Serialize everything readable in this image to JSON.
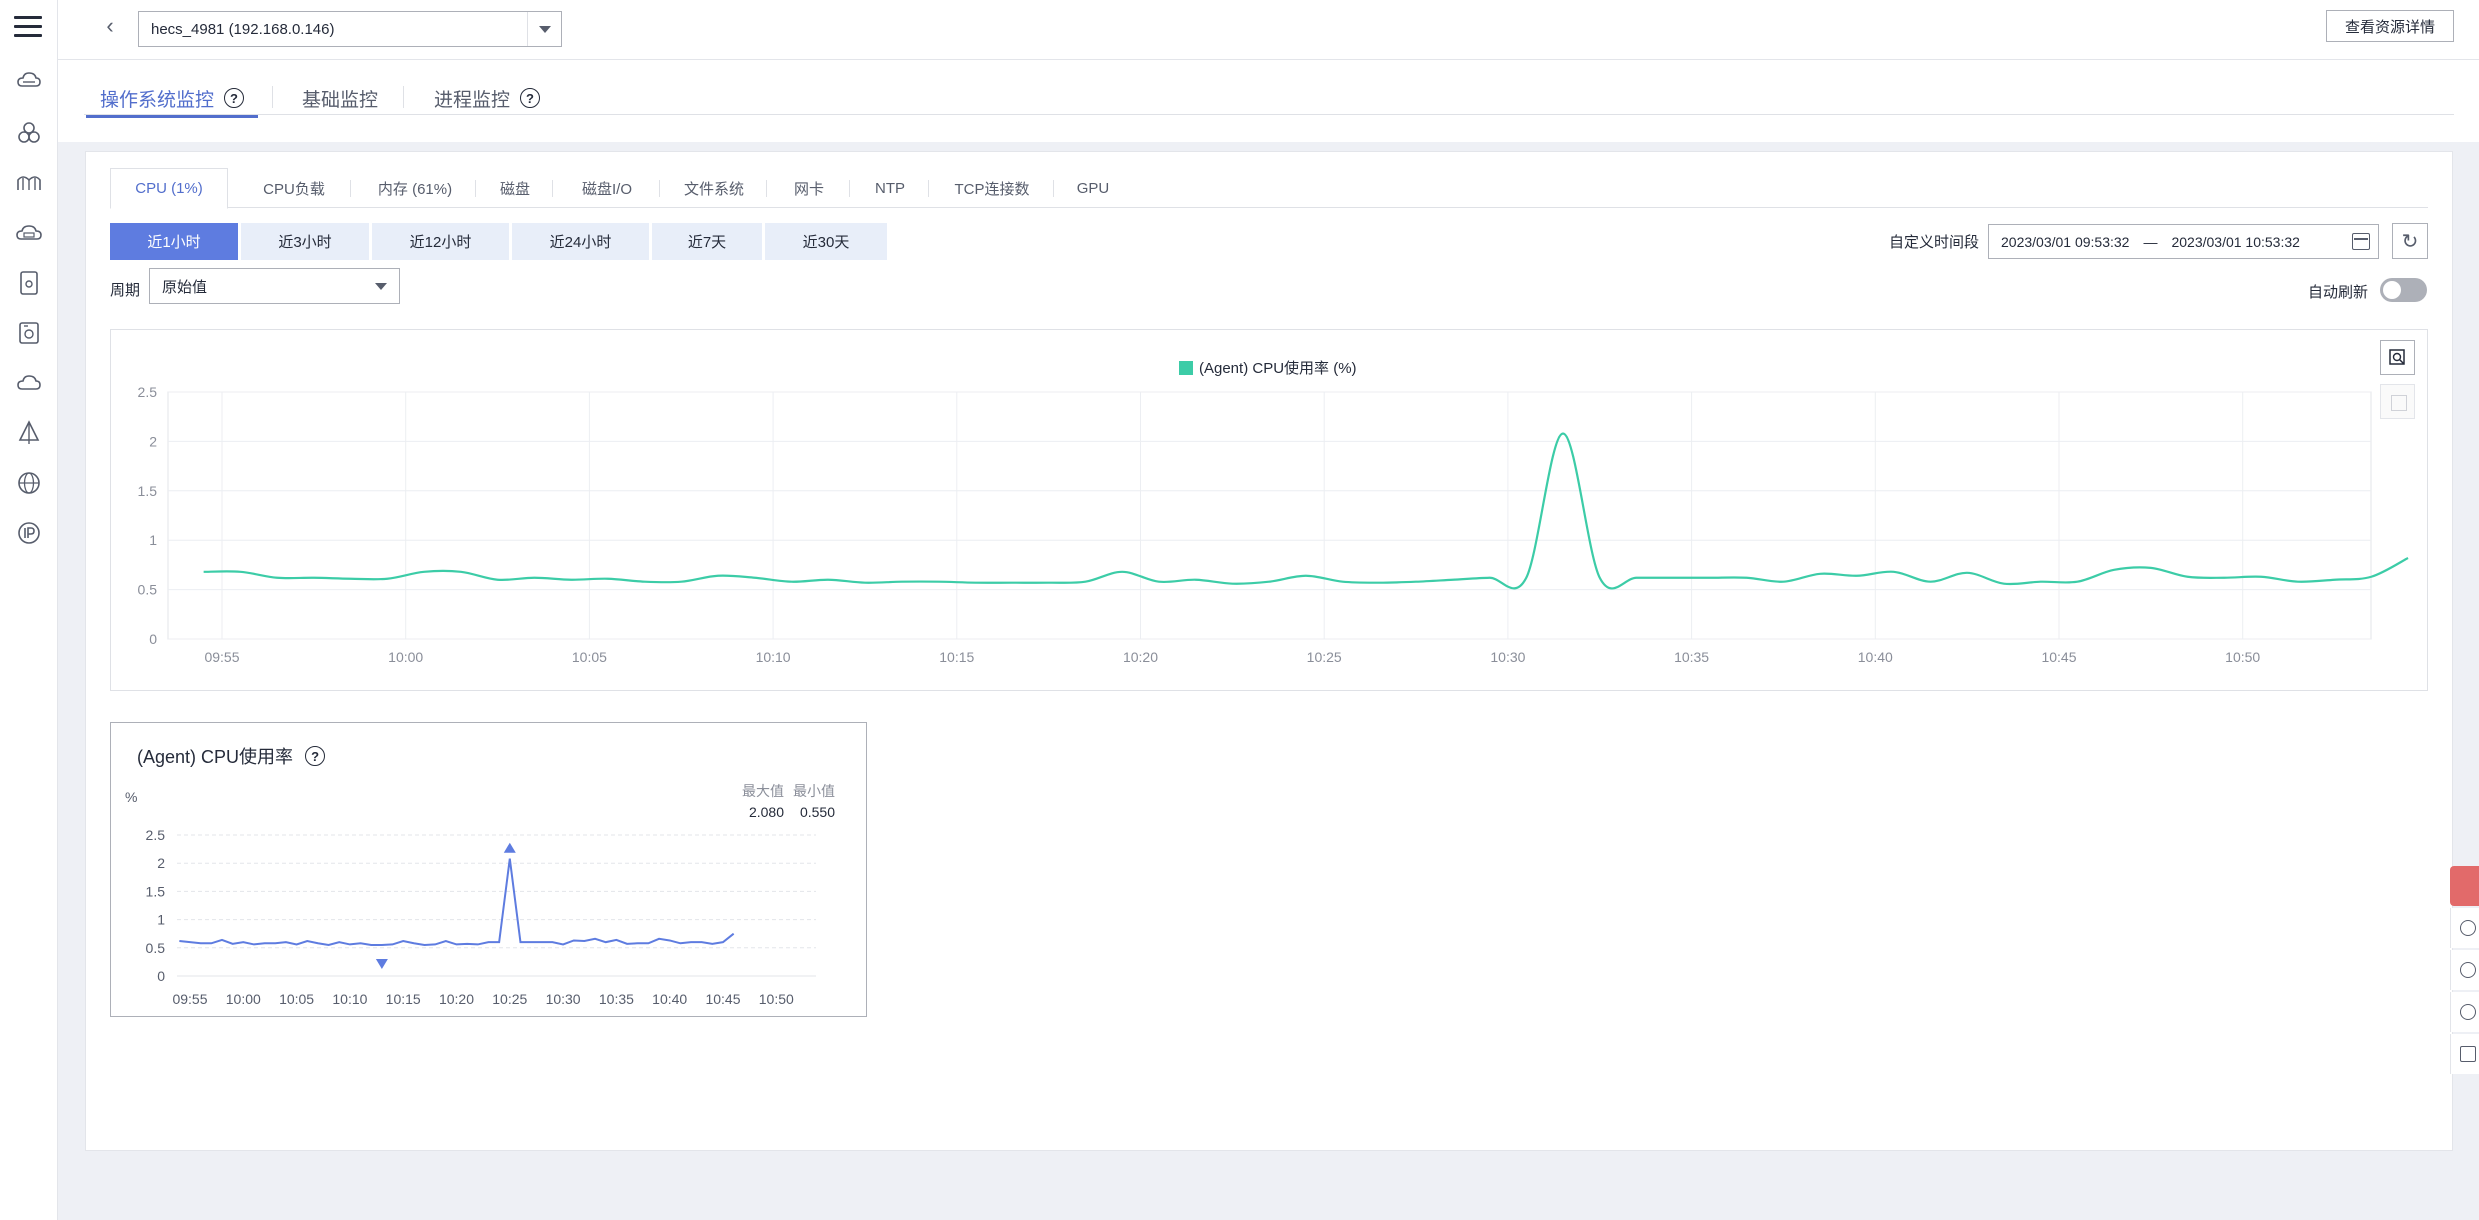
{
  "header": {
    "back_icon": "chevron-left-icon",
    "host_select_value": "hecs_4981  (192.168.0.146)",
    "detail_button": "查看资源详情"
  },
  "sub_tabs": [
    {
      "label": "操作系统监控",
      "active": true,
      "help": true
    },
    {
      "label": "基础监控",
      "active": false,
      "help": false
    },
    {
      "label": "进程监控",
      "active": false,
      "help": true
    }
  ],
  "metric_tabs": [
    {
      "label": "CPU (1%)",
      "active": true
    },
    {
      "label": "CPU负载",
      "active": false
    },
    {
      "label": "内存 (61%)",
      "active": false
    },
    {
      "label": "磁盘",
      "active": false
    },
    {
      "label": "磁盘I/O",
      "active": false
    },
    {
      "label": "文件系统",
      "active": false
    },
    {
      "label": "网卡",
      "active": false
    },
    {
      "label": "NTP",
      "active": false
    },
    {
      "label": "TCP连接数",
      "active": false
    },
    {
      "label": "GPU",
      "active": false
    }
  ],
  "time_ranges": [
    {
      "label": "近1小时",
      "active": true
    },
    {
      "label": "近3小时",
      "active": false
    },
    {
      "label": "近12小时",
      "active": false
    },
    {
      "label": "近24小时",
      "active": false
    },
    {
      "label": "近7天",
      "active": false
    },
    {
      "label": "近30天",
      "active": false
    }
  ],
  "custom_range": {
    "label": "自定义时间段",
    "start": "2023/03/01 09:53:32",
    "separator": "—",
    "end": "2023/03/01 10:53:32"
  },
  "period": {
    "label": "周期",
    "value": "原始值"
  },
  "auto_refresh": {
    "label": "自动刷新",
    "on": false
  },
  "colors": {
    "primary": "#526ecc",
    "series": "#3ccca7",
    "mini_series": "#5e7ce0"
  },
  "chart_data": [
    {
      "type": "line",
      "legend": "(Agent) CPU使用率 (%)",
      "legend_placement": "top-center",
      "grid": true,
      "ylim": [
        0,
        2.5
      ],
      "yticks": [
        "0",
        "0.5",
        "1",
        "1.5",
        "2",
        "2.5"
      ],
      "xticks": [
        "09:55",
        "10:00",
        "10:05",
        "10:10",
        "10:15",
        "10:20",
        "10:25",
        "10:30",
        "10:35",
        "10:40",
        "10:45",
        "10:50"
      ],
      "x_start_minutes": 54.5,
      "x_step_minutes": 1,
      "values": [
        0.68,
        0.68,
        0.62,
        0.62,
        0.61,
        0.61,
        0.68,
        0.68,
        0.6,
        0.62,
        0.6,
        0.61,
        0.58,
        0.58,
        0.64,
        0.62,
        0.58,
        0.6,
        0.57,
        0.58,
        0.58,
        0.57,
        0.57,
        0.57,
        0.58,
        0.68,
        0.58,
        0.6,
        0.56,
        0.58,
        0.64,
        0.58,
        0.57,
        0.58,
        0.6,
        0.62,
        0.62,
        2.08,
        0.62,
        0.62,
        0.62,
        0.62,
        0.62,
        0.58,
        0.66,
        0.64,
        0.68,
        0.58,
        0.67,
        0.56,
        0.58,
        0.58,
        0.7,
        0.72,
        0.63,
        0.62,
        0.63,
        0.58,
        0.6,
        0.63,
        0.82
      ]
    },
    {
      "type": "line",
      "title": "(Agent) CPU使用率",
      "ylabel": "%",
      "ylim": [
        0,
        2.5
      ],
      "yticks": [
        "0",
        "0.5",
        "1",
        "1.5",
        "2",
        "2.5"
      ],
      "xticks": [
        "09:55",
        "10:00",
        "10:05",
        "10:10",
        "10:15",
        "10:20",
        "10:25",
        "10:30",
        "10:35",
        "10:40",
        "10:45",
        "10:50"
      ],
      "stats": {
        "max_label": "最大值",
        "min_label": "最小值",
        "max": "2.080",
        "min": "0.550"
      },
      "x_start_minutes": 54,
      "x_step_minutes": 1,
      "values": [
        0.62,
        0.6,
        0.58,
        0.58,
        0.64,
        0.57,
        0.6,
        0.56,
        0.58,
        0.58,
        0.6,
        0.56,
        0.62,
        0.58,
        0.55,
        0.6,
        0.56,
        0.58,
        0.55,
        0.55,
        0.56,
        0.62,
        0.58,
        0.55,
        0.56,
        0.62,
        0.56,
        0.57,
        0.56,
        0.6,
        0.6,
        2.08,
        0.6,
        0.6,
        0.6,
        0.6,
        0.56,
        0.63,
        0.62,
        0.66,
        0.6,
        0.64,
        0.57,
        0.58,
        0.58,
        0.66,
        0.63,
        0.58,
        0.6,
        0.6,
        0.57,
        0.6,
        0.75
      ],
      "max_index": 31,
      "min_index": 19
    }
  ]
}
